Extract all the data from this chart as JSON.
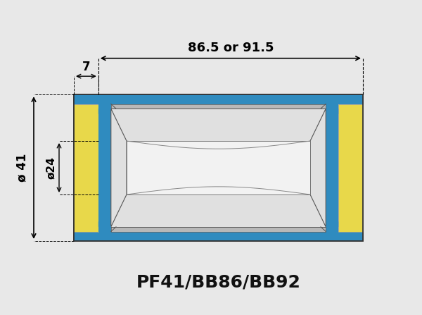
{
  "title": "PF41/BB86/BB92",
  "bg_color": "#e8e8e8",
  "blue_color": "#2f8bbf",
  "yellow_color": "#e8d84a",
  "shell_gray": "#c8c8c8",
  "inner_gray": "#b8b8b8",
  "light_inner": "#e0e0e0",
  "white_inner": "#f2f2f2",
  "dim_total_label": "86.5 or 91.5",
  "dim_7_label": "7",
  "dim_41_label": "ø 41",
  "dim_24_label": "ø24",
  "title_fontsize": 18,
  "annotation_fontsize": 11
}
